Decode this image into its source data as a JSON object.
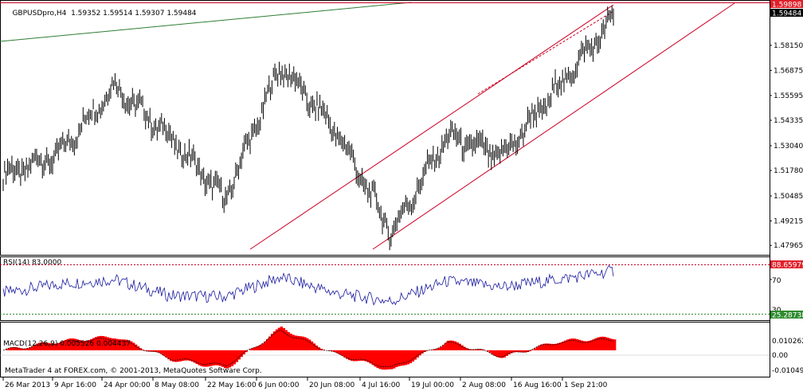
{
  "window": {
    "symbol": "GBPUSDpro,H4",
    "ohlc": "1.59352 1.59514 1.59307 1.59484",
    "copyright": "MetaTrader 4 at FOREX.com, © 2001-2013, MetaQuotes Software Corp."
  },
  "price_pane": {
    "label_high": "1.59898",
    "label_current": "1.59484",
    "y_ticks": [
      "1.58150",
      "1.56875",
      "1.55595",
      "1.54335",
      "1.53040",
      "1.51780",
      "1.50485",
      "1.49215",
      "1.47965"
    ],
    "y_range": [
      1.4765,
      1.6005
    ]
  },
  "rsi_pane": {
    "title": "RSI(14) 83.0000",
    "level_high_label": "88.65979",
    "level_low_label": "25.28738",
    "tick_70": "70",
    "tick_30": "30"
  },
  "macd_pane": {
    "title": "MACD(12,26,9) 0.005526 0.004437",
    "y_ticks": [
      "0.010262",
      "0.00",
      "-0.010497"
    ]
  },
  "time_axis": {
    "labels": [
      "26 Mar 2013",
      "9 Apr 16:00",
      "24 Apr 00:00",
      "8 May 08:00",
      "22 May 16:00",
      "6 Jun 00:00",
      "20 Jun 08:00",
      "4 Jul 16:00",
      "19 Jul 00:00",
      "2 Aug 08:00",
      "16 Aug 16:00",
      "1 Sep 21:00"
    ]
  },
  "colors": {
    "price_line": "#000000",
    "channel": "#cc0022",
    "trend_green": "#2e7d32",
    "rsi_line": "#1a1aa0",
    "level_green": "#2e8b2e",
    "macd_hist": "#ff0000",
    "label_red": "#e0202a"
  },
  "chart_data": [
    {
      "type": "line",
      "title": "GBPUSDpro,H4",
      "series": [
        {
          "name": "GBPUSDpro,H4",
          "x": [
            "26 Mar 2013",
            "9 Apr 16:00",
            "24 Apr 00:00",
            "8 May 08:00",
            "22 May 16:00",
            "6 Jun 00:00",
            "20 Jun 08:00",
            "4 Jul 16:00",
            "19 Jul 00:00",
            "2 Aug 08:00",
            "16 Aug 16:00",
            "1 Sep 21:00"
          ],
          "values": [
            1.515,
            1.526,
            1.561,
            1.535,
            1.503,
            1.571,
            1.538,
            1.486,
            1.535,
            1.525,
            1.56,
            1.595
          ]
        }
      ],
      "ylim": [
        1.4765,
        1.6005
      ],
      "grid": false
    },
    {
      "type": "line",
      "title": "RSI(14) 83.0000",
      "series": [
        {
          "name": "RSI(14)",
          "values": [
            45,
            60,
            68,
            40,
            38,
            72,
            44,
            30,
            65,
            55,
            68,
            83
          ]
        }
      ],
      "levels": [
        88.65979,
        25.28738
      ],
      "ylim": [
        0,
        100
      ]
    },
    {
      "type": "bar",
      "title": "MACD(12,26,9) 0.005526 0.004437",
      "series": [
        {
          "name": "MACD",
          "values": [
            0.0,
            0.004,
            0.006,
            -0.004,
            -0.008,
            0.01,
            -0.002,
            -0.009,
            0.004,
            -0.003,
            0.004,
            0.0055
          ]
        }
      ],
      "ylim": [
        -0.0112,
        0.0118
      ]
    }
  ]
}
